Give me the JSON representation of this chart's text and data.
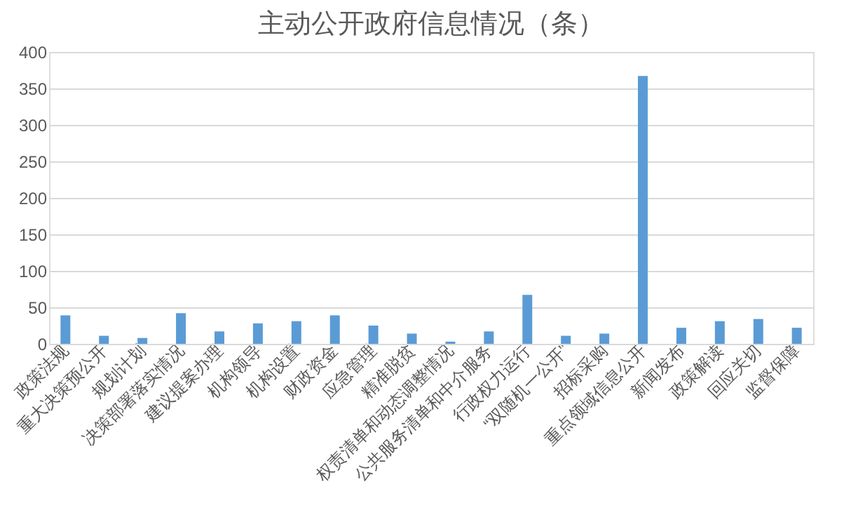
{
  "chart_data": {
    "type": "bar",
    "title": "主动公开政府信息情况（条）",
    "categories": [
      "政策法规",
      "重大决策预公开",
      "规划计划",
      "决策部署落实情况",
      "建议提案办理",
      "机构领导",
      "机构设置",
      "财政资金",
      "应急管理",
      "精准脱贫",
      "权责清单和动态调整情况",
      "公共服务清单和中介服务",
      "行政权力运行",
      "“双随机一公开”",
      "招标采购",
      "重点领域信息公开",
      "新闻发布",
      "政策解读",
      "回应关切",
      "监督保障"
    ],
    "values": [
      39,
      11,
      8,
      42,
      17,
      28,
      31,
      39,
      25,
      14,
      3,
      17,
      67,
      11,
      14,
      367,
      22,
      31,
      34,
      22
    ],
    "color": "#5b9bd5",
    "ylim": [
      0,
      400
    ],
    "yticks": [
      0,
      50,
      100,
      150,
      200,
      250,
      300,
      350,
      400
    ],
    "grid": "y"
  }
}
